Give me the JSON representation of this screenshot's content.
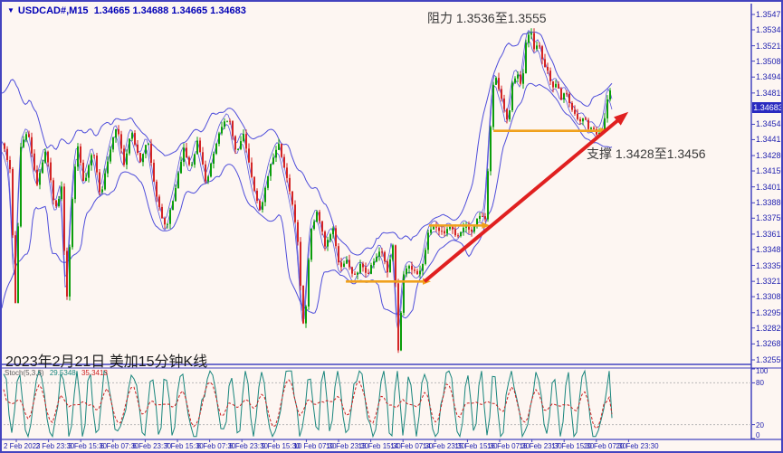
{
  "window": {
    "title_symbol": "USDCAD#,M15",
    "title_ohlc": "1.34665 1.34688 1.34665 1.34683",
    "triangle_icon": "▼"
  },
  "annotations": {
    "resistance": "阻力 1.3536至1.3555",
    "support": "支撑 1.3428至1.3456",
    "date_label": "2023年2月21日 美加15分钟K线"
  },
  "price_axis": {
    "labels": [
      "1.35475",
      "1.35345",
      "1.35210",
      "1.35080",
      "1.34945",
      "1.34810",
      "1.34545",
      "1.34415",
      "1.34280",
      "1.34150",
      "1.34015",
      "1.33880",
      "1.33750",
      "1.33615",
      "1.33485",
      "1.33350",
      "1.33215",
      "1.33085",
      "1.32950",
      "1.32820",
      "1.32685",
      "1.32550"
    ],
    "current_price": "1.34683"
  },
  "time_axis": {
    "labels": [
      "2 Feb 2023",
      "2 Feb 23:30",
      "3 Feb 15:30",
      "6 Feb 07:30",
      "6 Feb 23:30",
      "7 Feb 15:30",
      "8 Feb 07:30",
      "8 Feb 23:30",
      "9 Feb 15:30",
      "10 Feb 07:30",
      "10 Feb 23:30",
      "13 Feb 15:30",
      "14 Feb 07:30",
      "14 Feb 23:30",
      "15 Feb 15:30",
      "16 Feb 07:30",
      "16 Feb 23:30",
      "17 Feb 15:30",
      "20 Feb 07:30",
      "20 Feb 23:30"
    ]
  },
  "stochastic": {
    "label": "Stoch(5,3,3)",
    "main_value": "29.5348",
    "signal_value": "35.3413",
    "scale_labels": [
      "100",
      "80",
      "20",
      "0"
    ],
    "level_lines": [
      80,
      20
    ],
    "main_color": "#18857c",
    "signal_color": "#cc2222"
  },
  "colors": {
    "background": "#fdf6f2",
    "frame": "#4343bf",
    "axis_text": "#2323b0",
    "band": "#3c3cd8",
    "candle_up": "#0b9e0b",
    "candle_down": "#d42424",
    "trend_arrow": "#e02020",
    "support_arrow": "#f0a11c",
    "price_box": "#2a2ac0",
    "level_dash": "#b9b9b9"
  },
  "chart_data": {
    "type": "candlestick",
    "symbol": "USDCAD#",
    "timeframe": "M15",
    "title": "2023年2月21日 美加15分钟K线",
    "ohlc": {
      "open": "1.34665",
      "high": "1.34688",
      "low": "1.34665",
      "close": "1.34683"
    },
    "price_top": 1.35475,
    "price_bottom": 1.3255,
    "resistance_zone": [
      1.3536,
      1.3555
    ],
    "support_zone": [
      1.3428,
      1.3456
    ],
    "stoch_main": 29.5348,
    "stoch_signal": 35.3413,
    "price_path": [
      [
        0,
        1.34383
      ],
      [
        8,
        1.34154
      ],
      [
        14,
        1.33046
      ],
      [
        20,
        1.34345
      ],
      [
        28,
        1.34497
      ],
      [
        38,
        1.34039
      ],
      [
        48,
        1.34345
      ],
      [
        58,
        1.3381
      ],
      [
        66,
        1.34039
      ],
      [
        70,
        1.32932
      ],
      [
        76,
        1.3381
      ],
      [
        82,
        1.34383
      ],
      [
        90,
        1.34039
      ],
      [
        100,
        1.34345
      ],
      [
        108,
        1.33925
      ],
      [
        118,
        1.34307
      ],
      [
        126,
        1.34536
      ],
      [
        134,
        1.34192
      ],
      [
        142,
        1.34497
      ],
      [
        152,
        1.3423
      ],
      [
        160,
        1.34421
      ],
      [
        170,
        1.33925
      ],
      [
        180,
        1.33657
      ],
      [
        190,
        1.33963
      ],
      [
        200,
        1.34345
      ],
      [
        208,
        1.34154
      ],
      [
        215,
        1.34421
      ],
      [
        225,
        1.34039
      ],
      [
        232,
        1.34268
      ],
      [
        240,
        1.34497
      ],
      [
        250,
        1.34612
      ],
      [
        258,
        1.34307
      ],
      [
        266,
        1.34459
      ],
      [
        276,
        1.34039
      ],
      [
        285,
        1.3381
      ],
      [
        295,
        1.34192
      ],
      [
        305,
        1.34383
      ],
      [
        315,
        1.34039
      ],
      [
        325,
        1.33657
      ],
      [
        333,
        1.32726
      ],
      [
        340,
        1.33657
      ],
      [
        348,
        1.3381
      ],
      [
        356,
        1.33505
      ],
      [
        365,
        1.33657
      ],
      [
        372,
        1.33314
      ],
      [
        380,
        1.3339
      ],
      [
        388,
        1.33237
      ],
      [
        395,
        1.33352
      ],
      [
        403,
        1.33276
      ],
      [
        410,
        1.3339
      ],
      [
        418,
        1.33505
      ],
      [
        425,
        1.33276
      ],
      [
        432,
        1.33581
      ],
      [
        437,
        1.32626
      ],
      [
        443,
        1.33276
      ],
      [
        450,
        1.33352
      ],
      [
        457,
        1.33276
      ],
      [
        463,
        1.33314
      ],
      [
        470,
        1.33619
      ],
      [
        478,
        1.33695
      ],
      [
        486,
        1.33619
      ],
      [
        494,
        1.33672
      ],
      [
        502,
        1.33596
      ],
      [
        510,
        1.33695
      ],
      [
        518,
        1.33642
      ],
      [
        526,
        1.33772
      ],
      [
        533,
        1.33734
      ],
      [
        538,
        1.34421
      ],
      [
        543,
        1.34994
      ],
      [
        548,
        1.34841
      ],
      [
        553,
        1.34727
      ],
      [
        558,
        1.34536
      ],
      [
        563,
        1.34879
      ],
      [
        568,
        1.34994
      ],
      [
        573,
        1.34841
      ],
      [
        578,
        1.35223
      ],
      [
        583,
        1.35338
      ],
      [
        588,
        1.35147
      ],
      [
        592,
        1.35261
      ],
      [
        597,
        1.3507
      ],
      [
        602,
        1.34994
      ],
      [
        607,
        1.34841
      ],
      [
        612,
        1.34918
      ],
      [
        617,
        1.34765
      ],
      [
        622,
        1.34841
      ],
      [
        627,
        1.34688
      ],
      [
        632,
        1.3465
      ],
      [
        637,
        1.34574
      ],
      [
        642,
        1.34612
      ],
      [
        647,
        1.34497
      ],
      [
        652,
        1.34536
      ],
      [
        657,
        1.34459
      ],
      [
        662,
        1.34497
      ],
      [
        666,
        1.3465
      ],
      [
        670,
        1.34879
      ],
      [
        673,
        1.34683
      ]
    ],
    "support_arrows": [
      {
        "price": 1.33214,
        "x1_frac": 0.459,
        "x2_frac": 0.564
      },
      {
        "price": 1.33688,
        "x1_frac": 0.57,
        "x2_frac": 0.643
      },
      {
        "price": 1.3449,
        "x1_frac": 0.656,
        "x2_frac": 0.801
      }
    ],
    "trendline": {
      "price1": 1.33214,
      "x1_frac": 0.564,
      "price2": 1.3465,
      "x2_frac": 0.836
    }
  }
}
